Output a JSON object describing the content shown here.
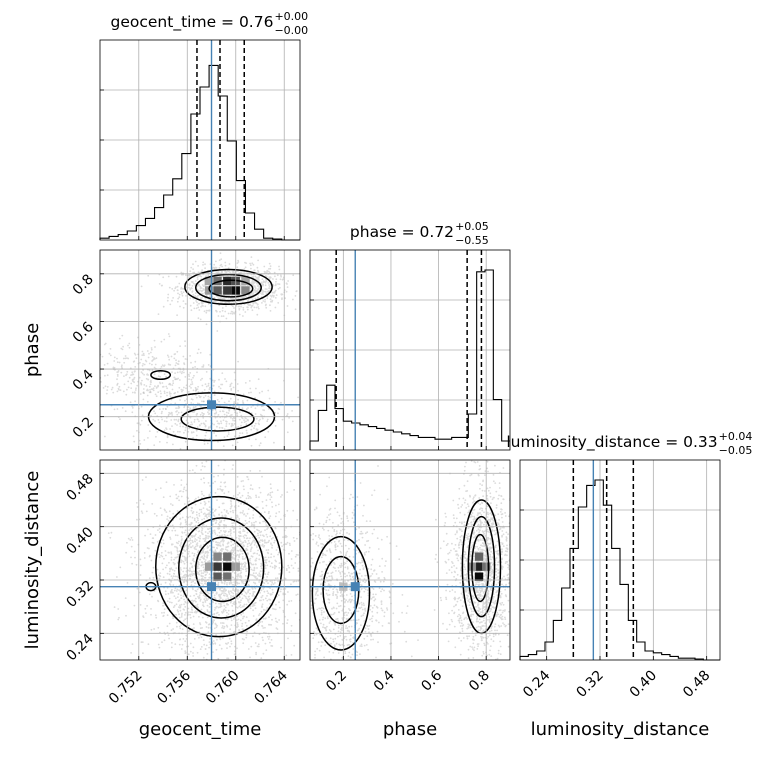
{
  "chart_data": {
    "type": "corner",
    "grid": true,
    "colors": {
      "truth": "#4682b4",
      "hist": "#000000",
      "quantile": "#000000",
      "scatter": "#9a9a9a",
      "grid": "#b0b0b0"
    },
    "parameters": [
      {
        "name": "geocent_time",
        "xlabel": "geocent_time",
        "range": [
          0.7488,
          0.7653
        ],
        "truth": 0.758,
        "ticks": [
          "0.752",
          "0.756",
          "0.760",
          "0.764"
        ],
        "tick_values": [
          0.752,
          0.756,
          0.76,
          0.764
        ],
        "title": {
          "main": "geocent_time = 0.76",
          "sup": "+0.00",
          "sub": "−0.00"
        },
        "quantiles": [
          0.7568,
          0.7587,
          0.7607
        ],
        "hist": {
          "bin_start": 0.7488,
          "bin_width": 0.00075,
          "counts": [
            0.01,
            0.02,
            0.03,
            0.05,
            0.08,
            0.12,
            0.18,
            0.25,
            0.34,
            0.48,
            0.7,
            0.85,
            0.97,
            0.8,
            0.55,
            0.33,
            0.15,
            0.06,
            0.01,
            0.005,
            0.0,
            0.0
          ]
        }
      },
      {
        "name": "phase",
        "ylabel": "phase",
        "xlabel": "phase",
        "range": [
          0.06,
          0.9
        ],
        "truth": 0.25,
        "ticks": [
          "0.2",
          "0.4",
          "0.6",
          "0.8"
        ],
        "tick_values": [
          0.2,
          0.4,
          0.6,
          0.8
        ],
        "title": {
          "main": "phase = 0.72",
          "sup": "+0.05",
          "sub": "−0.55"
        },
        "quantiles": [
          0.17,
          0.72,
          0.78
        ],
        "hist": {
          "bin_start": 0.06,
          "bin_width": 0.035,
          "counts": [
            0.05,
            0.22,
            0.36,
            0.23,
            0.16,
            0.15,
            0.14,
            0.13,
            0.12,
            0.11,
            0.1,
            0.09,
            0.08,
            0.07,
            0.07,
            0.06,
            0.06,
            0.07,
            0.07,
            0.2,
            0.99,
            1.0,
            0.28,
            0.05
          ]
        }
      },
      {
        "name": "luminosity_distance",
        "ylabel": "luminosity_distance",
        "xlabel": "luminosity_distance",
        "range": [
          0.2,
          0.5
        ],
        "truth": 0.31,
        "ticks": [
          "0.24",
          "0.32",
          "0.40",
          "0.48"
        ],
        "tick_values": [
          0.24,
          0.32,
          0.4,
          0.48
        ],
        "title": {
          "main": "luminosity_distance = 0.33",
          "sup": "+0.04",
          "sub": "−0.05"
        },
        "quantiles": [
          0.28,
          0.33,
          0.37
        ],
        "hist": {
          "bin_start": 0.2,
          "bin_width": 0.0125,
          "counts": [
            0.02,
            0.03,
            0.05,
            0.1,
            0.22,
            0.4,
            0.62,
            0.85,
            0.97,
            1.0,
            0.86,
            0.62,
            0.42,
            0.22,
            0.1,
            0.05,
            0.04,
            0.03,
            0.02,
            0.01,
            0.01,
            0.005,
            0.0,
            0.0
          ]
        }
      }
    ],
    "pairs": [
      {
        "row": 1,
        "col": 0,
        "x": "geocent_time",
        "y": "phase",
        "modes": [
          {
            "cx": 0.7596,
            "cy": 0.74,
            "sx": 0.0014,
            "sy": 0.032,
            "n": 1500
          },
          {
            "cx": 0.7578,
            "cy": 0.21,
            "sx": 0.0022,
            "sy": 0.05,
            "n": 550
          },
          {
            "cx": 0.7525,
            "cy": 0.38,
            "sx": 0.0022,
            "sy": 0.05,
            "n": 400
          }
        ],
        "contours": [
          {
            "cx": 0.7594,
            "cy": 0.745,
            "rx": 0.0036,
            "ry": 0.073
          },
          {
            "cx": 0.7594,
            "cy": 0.742,
            "rx": 0.0027,
            "ry": 0.055
          },
          {
            "cx": 0.7596,
            "cy": 0.738,
            "rx": 0.0018,
            "ry": 0.035
          },
          {
            "cx": 0.758,
            "cy": 0.2,
            "rx": 0.0052,
            "ry": 0.1
          },
          {
            "cx": 0.7585,
            "cy": 0.19,
            "rx": 0.003,
            "ry": 0.05
          },
          {
            "cx": 0.7538,
            "cy": 0.375,
            "rx": 0.0008,
            "ry": 0.018
          }
        ],
        "hist2d": [
          {
            "x": 0.7585,
            "y": 0.77,
            "v": 0.55
          },
          {
            "x": 0.7593,
            "y": 0.77,
            "v": 0.85
          },
          {
            "x": 0.76,
            "y": 0.77,
            "v": 0.7
          },
          {
            "x": 0.7585,
            "y": 0.73,
            "v": 0.65
          },
          {
            "x": 0.7593,
            "y": 0.73,
            "v": 0.8
          },
          {
            "x": 0.76,
            "y": 0.73,
            "v": 1.0
          },
          {
            "x": 0.7608,
            "y": 0.73,
            "v": 0.45
          },
          {
            "x": 0.7578,
            "y": 0.77,
            "v": 0.3
          },
          {
            "x": 0.7578,
            "y": 0.73,
            "v": 0.35
          },
          {
            "x": 0.7608,
            "y": 0.77,
            "v": 0.3
          }
        ]
      },
      {
        "row": 2,
        "col": 0,
        "x": "geocent_time",
        "y": "luminosity_distance",
        "modes": [
          {
            "cx": 0.7588,
            "cy": 0.335,
            "sx": 0.0022,
            "sy": 0.045,
            "n": 2600
          }
        ],
        "contours": [
          {
            "cx": 0.7586,
            "cy": 0.34,
            "rx": 0.0052,
            "ry": 0.105
          },
          {
            "cx": 0.7588,
            "cy": 0.338,
            "rx": 0.0035,
            "ry": 0.075
          },
          {
            "cx": 0.7589,
            "cy": 0.336,
            "rx": 0.0022,
            "ry": 0.048
          },
          {
            "cx": 0.753,
            "cy": 0.31,
            "rx": 0.0004,
            "ry": 0.006
          }
        ],
        "hist2d": [
          {
            "x": 0.7585,
            "y": 0.355,
            "v": 0.45
          },
          {
            "x": 0.7593,
            "y": 0.355,
            "v": 0.55
          },
          {
            "x": 0.7585,
            "y": 0.34,
            "v": 0.8
          },
          {
            "x": 0.7593,
            "y": 0.34,
            "v": 1.0
          },
          {
            "x": 0.7585,
            "y": 0.325,
            "v": 0.65
          },
          {
            "x": 0.7593,
            "y": 0.325,
            "v": 0.55
          },
          {
            "x": 0.7578,
            "y": 0.34,
            "v": 0.35
          },
          {
            "x": 0.76,
            "y": 0.34,
            "v": 0.35
          }
        ]
      },
      {
        "row": 2,
        "col": 1,
        "x": "phase",
        "y": "luminosity_distance",
        "modes": [
          {
            "cx": 0.78,
            "cy": 0.335,
            "sx": 0.045,
            "sy": 0.045,
            "n": 1500
          },
          {
            "cx": 0.19,
            "cy": 0.3,
            "sx": 0.07,
            "sy": 0.05,
            "n": 900
          }
        ],
        "contours": [
          {
            "cx": 0.78,
            "cy": 0.34,
            "rx": 0.08,
            "ry": 0.1
          },
          {
            "cx": 0.78,
            "cy": 0.34,
            "rx": 0.055,
            "ry": 0.075
          },
          {
            "cx": 0.775,
            "cy": 0.338,
            "rx": 0.035,
            "ry": 0.05
          },
          {
            "cx": 0.19,
            "cy": 0.3,
            "rx": 0.12,
            "ry": 0.085
          },
          {
            "cx": 0.19,
            "cy": 0.305,
            "rx": 0.075,
            "ry": 0.05
          }
        ],
        "hist2d": [
          {
            "x": 0.77,
            "y": 0.355,
            "v": 0.6
          },
          {
            "x": 0.77,
            "y": 0.34,
            "v": 0.9
          },
          {
            "x": 0.77,
            "y": 0.325,
            "v": 1.0
          },
          {
            "x": 0.8,
            "y": 0.34,
            "v": 0.55
          },
          {
            "x": 0.74,
            "y": 0.34,
            "v": 0.4
          },
          {
            "x": 0.2,
            "y": 0.31,
            "v": 0.2
          }
        ]
      }
    ]
  }
}
